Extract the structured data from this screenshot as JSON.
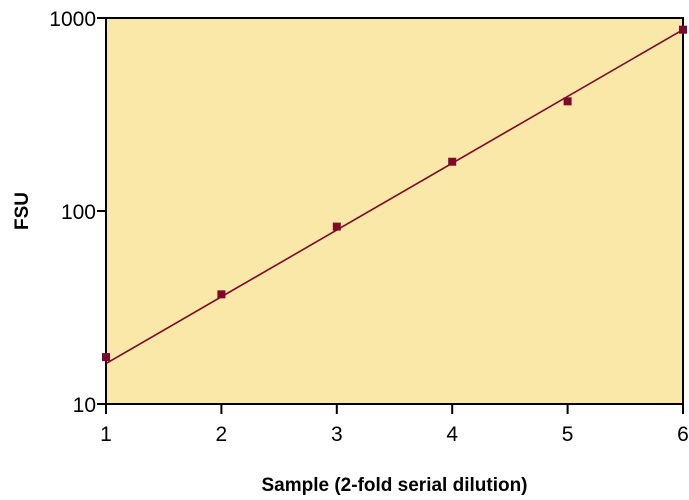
{
  "chart_data": {
    "type": "scatter",
    "title": "",
    "xlabel": "Sample (2-fold serial dilution)",
    "ylabel": "FSU",
    "xlim": [
      1,
      6
    ],
    "ylim": [
      10,
      1000
    ],
    "yscale": "log",
    "x_ticks": [
      1,
      2,
      3,
      4,
      5,
      6
    ],
    "x_tick_labels": [
      "1",
      "2",
      "3",
      "4",
      "5",
      "6"
    ],
    "y_ticks": [
      10,
      100,
      1000
    ],
    "y_tick_labels": [
      "10",
      "100",
      "1000"
    ],
    "grid": false,
    "legend": "none",
    "series": [
      {
        "x": [
          1,
          2,
          3,
          4,
          5,
          6
        ],
        "y": [
          17.5,
          37,
          83,
          180,
          370,
          870
        ]
      }
    ],
    "fit_line": {
      "x": [
        1,
        6
      ],
      "y": [
        16.2,
        870
      ]
    },
    "colors": {
      "plot_background": "#f9e8a8",
      "marker": "#800828",
      "line": "#800828",
      "axis": "#000000"
    }
  }
}
